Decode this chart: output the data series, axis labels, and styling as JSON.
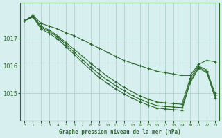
{
  "xlabel": "Graphe pression niveau de la mer (hPa)",
  "x": [
    0,
    1,
    2,
    3,
    4,
    5,
    6,
    7,
    8,
    9,
    10,
    11,
    12,
    13,
    14,
    15,
    16,
    17,
    18,
    19,
    20,
    21,
    22,
    23
  ],
  "lines": [
    [
      1017.65,
      1017.85,
      1017.55,
      1017.45,
      1017.35,
      1017.2,
      1017.1,
      1016.95,
      1016.8,
      1016.65,
      1016.5,
      1016.35,
      1016.2,
      1016.1,
      1016.0,
      1015.9,
      1015.8,
      1015.75,
      1015.7,
      1015.65,
      1015.65,
      1016.05,
      1016.2,
      1016.15
    ],
    [
      1017.65,
      1017.82,
      1017.45,
      1017.3,
      1017.1,
      1016.85,
      1016.6,
      1016.35,
      1016.1,
      1015.85,
      1015.62,
      1015.42,
      1015.22,
      1015.05,
      1014.9,
      1014.78,
      1014.68,
      1014.65,
      1014.62,
      1014.6,
      1015.55,
      1016.0,
      1015.85,
      1015.0
    ],
    [
      1017.65,
      1017.8,
      1017.4,
      1017.25,
      1017.05,
      1016.78,
      1016.5,
      1016.22,
      1015.96,
      1015.7,
      1015.48,
      1015.28,
      1015.1,
      1014.92,
      1014.78,
      1014.65,
      1014.55,
      1014.52,
      1014.5,
      1014.48,
      1015.45,
      1015.95,
      1015.8,
      1014.92
    ],
    [
      1017.65,
      1017.78,
      1017.35,
      1017.18,
      1016.98,
      1016.7,
      1016.42,
      1016.12,
      1015.85,
      1015.58,
      1015.36,
      1015.16,
      1014.98,
      1014.82,
      1014.68,
      1014.56,
      1014.46,
      1014.43,
      1014.4,
      1014.38,
      1015.38,
      1015.9,
      1015.76,
      1014.84
    ]
  ],
  "line_color": "#2d6a2d",
  "marker": "+",
  "markersize": 3.5,
  "linewidth": 0.8,
  "bg_color": "#d8eff0",
  "grid_color": "#aacccc",
  "axis_color": "#2d6a2d",
  "tick_color": "#2d6a2d",
  "ylabel_ticks": [
    1015,
    1016,
    1017
  ],
  "ylim": [
    1014.0,
    1018.3
  ],
  "xlim": [
    -0.5,
    23.5
  ]
}
